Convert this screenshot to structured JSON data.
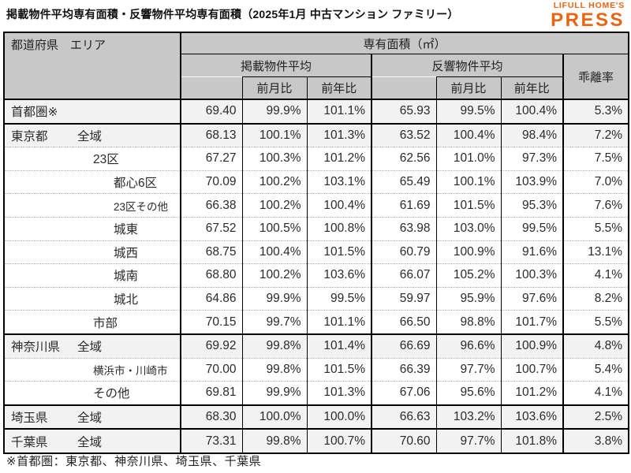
{
  "title": "掲載物件平均専有面積・反響物件平均専有面積（2025年1月 中古マンション ファミリー）",
  "logo": {
    "line1": "LIFULL HOME'S",
    "line2": "PRESS",
    "color": "#ea6511"
  },
  "colors": {
    "accent_orange": "#ea6511",
    "header_gray": "#c8c8c8",
    "summary_row_gray": "#f2f2f2",
    "border_black": "#000000"
  },
  "table": {
    "header": {
      "area_col": "都道府県　エリア",
      "unit": "専有面積（㎡）",
      "listed": "掲載物件平均",
      "inquiry": "反響物件平均",
      "deviation": "乖離率",
      "mom": "前月比",
      "yoy": "前年比"
    },
    "columns": [
      "エリア",
      "掲載平均面積",
      "掲載前月比",
      "掲載前年比",
      "反響平均面積",
      "反響前月比",
      "反響前年比",
      "乖離率"
    ],
    "rows": [
      {
        "label_pref": "首都圏※",
        "label_area": "",
        "indent": 0,
        "shaded": true,
        "thick_top": false,
        "cells": [
          "69.40",
          "99.9%",
          "101.1%",
          "65.93",
          "99.5%",
          "100.4%",
          "5.3%"
        ]
      },
      {
        "label_pref": "東京都",
        "label_area": "全域",
        "indent": 0,
        "shaded": true,
        "thick_top": true,
        "cells": [
          "68.13",
          "100.1%",
          "101.3%",
          "63.52",
          "100.4%",
          "98.4%",
          "7.2%"
        ]
      },
      {
        "label_pref": "",
        "label_area": "23区",
        "indent": 1,
        "shaded": false,
        "thick_top": false,
        "cells": [
          "67.27",
          "100.3%",
          "101.2%",
          "62.56",
          "101.0%",
          "97.3%",
          "7.5%"
        ]
      },
      {
        "label_pref": "",
        "label_area": "都心6区",
        "indent": 2,
        "shaded": false,
        "thick_top": false,
        "cells": [
          "70.09",
          "100.2%",
          "103.1%",
          "65.49",
          "100.1%",
          "103.9%",
          "7.0%"
        ]
      },
      {
        "label_pref": "",
        "label_area": "23区その他",
        "indent": 2,
        "shaded": false,
        "thick_top": false,
        "small": true,
        "cells": [
          "66.38",
          "100.2%",
          "100.4%",
          "61.69",
          "101.5%",
          "95.3%",
          "7.6%"
        ]
      },
      {
        "label_pref": "",
        "label_area": "城東",
        "indent": 2,
        "shaded": false,
        "thick_top": false,
        "cells": [
          "67.52",
          "100.5%",
          "100.8%",
          "63.98",
          "103.0%",
          "99.5%",
          "5.5%"
        ]
      },
      {
        "label_pref": "",
        "label_area": "城西",
        "indent": 2,
        "shaded": false,
        "thick_top": false,
        "cells": [
          "68.75",
          "100.4%",
          "101.5%",
          "60.79",
          "100.9%",
          "91.6%",
          "13.1%"
        ]
      },
      {
        "label_pref": "",
        "label_area": "城南",
        "indent": 2,
        "shaded": false,
        "thick_top": false,
        "cells": [
          "68.80",
          "100.2%",
          "103.6%",
          "66.07",
          "105.2%",
          "100.3%",
          "4.1%"
        ]
      },
      {
        "label_pref": "",
        "label_area": "城北",
        "indent": 2,
        "shaded": false,
        "thick_top": false,
        "cells": [
          "64.86",
          "99.9%",
          "99.5%",
          "59.97",
          "95.9%",
          "97.6%",
          "8.2%"
        ]
      },
      {
        "label_pref": "",
        "label_area": "市部",
        "indent": 1,
        "shaded": false,
        "thick_top": false,
        "cells": [
          "70.15",
          "99.7%",
          "101.1%",
          "66.50",
          "98.8%",
          "101.7%",
          "5.5%"
        ]
      },
      {
        "label_pref": "神奈川県",
        "label_area": "全域",
        "indent": 0,
        "shaded": true,
        "thick_top": true,
        "cells": [
          "69.92",
          "99.8%",
          "101.4%",
          "66.69",
          "96.6%",
          "100.9%",
          "4.8%"
        ]
      },
      {
        "label_pref": "",
        "label_area": "横浜市・川崎市",
        "indent": 1,
        "shaded": false,
        "thick_top": false,
        "small": true,
        "cells": [
          "70.00",
          "99.8%",
          "101.5%",
          "66.39",
          "97.7%",
          "100.7%",
          "5.4%"
        ]
      },
      {
        "label_pref": "",
        "label_area": "その他",
        "indent": 1,
        "shaded": false,
        "thick_top": false,
        "cells": [
          "69.81",
          "99.9%",
          "101.3%",
          "67.06",
          "95.6%",
          "101.2%",
          "4.1%"
        ]
      },
      {
        "label_pref": "埼玉県",
        "label_area": "全域",
        "indent": 0,
        "shaded": true,
        "thick_top": true,
        "cells": [
          "68.30",
          "100.0%",
          "100.0%",
          "66.63",
          "103.2%",
          "103.6%",
          "2.5%"
        ]
      },
      {
        "label_pref": "千葉県",
        "label_area": "全域",
        "indent": 0,
        "shaded": true,
        "thick_top": true,
        "cells": [
          "73.31",
          "99.8%",
          "100.7%",
          "70.60",
          "97.7%",
          "101.8%",
          "3.8%"
        ]
      }
    ]
  },
  "footnote": "※首都圏：東京都、神奈川県、埼玉県、千葉県"
}
